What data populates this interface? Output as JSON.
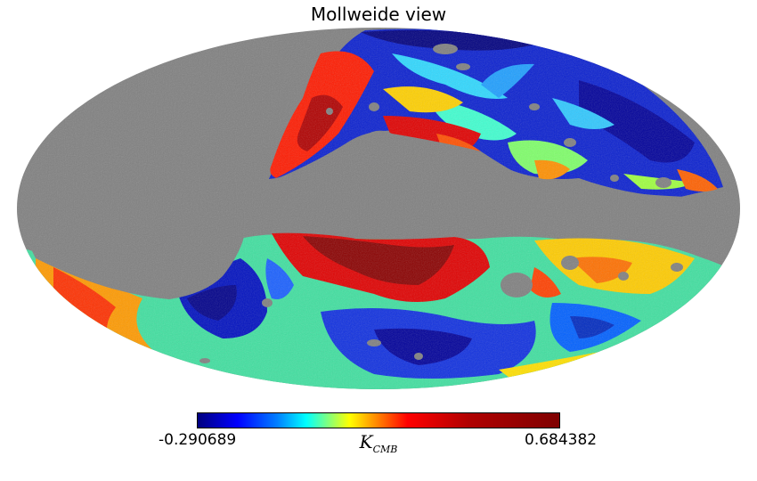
{
  "title": "Mollweide view",
  "projection": "mollweide",
  "colormap": "jet",
  "mask_color": "#808080",
  "colorbar": {
    "min_label": "-0.290689",
    "max_label": "0.684382",
    "min": -0.290689,
    "max": 0.684382,
    "unit_main": "K",
    "unit_sub": "CMB"
  }
}
